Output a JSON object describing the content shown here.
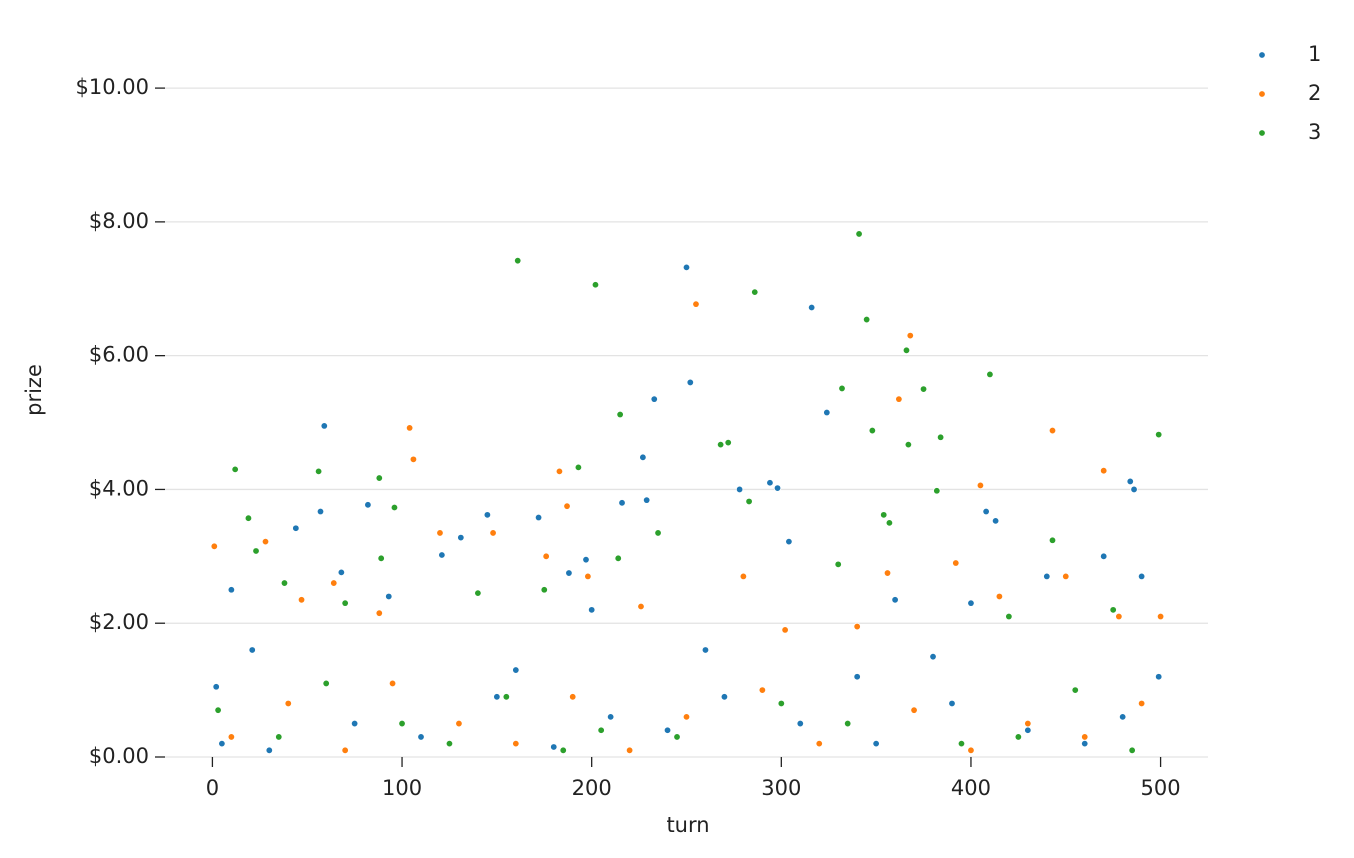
{
  "chart_data": {
    "type": "scatter",
    "x_label": "turn",
    "y_label": "prize",
    "xlim": [
      -25,
      525
    ],
    "ylim": [
      0,
      10.45
    ],
    "xticks": [
      0,
      100,
      200,
      300,
      400,
      500
    ],
    "yticks": [
      {
        "value": 0,
        "label": "$0.00"
      },
      {
        "value": 2,
        "label": "$2.00"
      },
      {
        "value": 4,
        "label": "$4.00"
      },
      {
        "value": 6,
        "label": "$6.00"
      },
      {
        "value": 8,
        "label": "$8.00"
      },
      {
        "value": 10,
        "label": "$10.00"
      }
    ],
    "grid": true,
    "legend": "upper-right",
    "series": [
      {
        "name": "1",
        "color": "#1f77b4",
        "x": [
          59,
          250,
          252,
          316,
          324,
          233,
          227,
          44,
          57,
          82,
          145,
          172,
          216,
          229,
          278,
          294,
          304,
          408,
          413,
          484,
          486,
          298,
          121,
          131,
          188,
          197,
          2,
          10,
          21,
          68,
          93,
          160,
          200,
          260,
          340,
          360,
          380,
          400,
          440,
          470,
          490,
          499,
          5,
          30,
          75,
          110,
          150,
          180,
          210,
          240,
          270,
          310,
          350,
          390,
          430,
          460,
          480
        ],
        "values": [
          4.95,
          7.32,
          5.6,
          6.72,
          5.15,
          5.35,
          4.48,
          3.42,
          3.67,
          3.77,
          3.62,
          3.58,
          3.8,
          3.84,
          4.0,
          4.1,
          3.22,
          3.67,
          3.53,
          4.12,
          4.0,
          4.02,
          3.02,
          3.28,
          2.75,
          2.95,
          1.05,
          2.5,
          1.6,
          2.76,
          2.4,
          1.3,
          2.2,
          1.6,
          1.2,
          2.35,
          1.5,
          2.3,
          2.7,
          3.0,
          2.7,
          1.2,
          0.2,
          0.1,
          0.5,
          0.3,
          0.9,
          0.15,
          0.6,
          0.4,
          0.9,
          0.5,
          0.2,
          0.8,
          0.4,
          0.2,
          0.6
        ]
      },
      {
        "name": "2",
        "color": "#ff7f0e",
        "x": [
          1,
          28,
          47,
          104,
          106,
          120,
          148,
          183,
          187,
          255,
          362,
          368,
          405,
          443,
          470,
          64,
          88,
          176,
          198,
          226,
          280,
          302,
          340,
          356,
          392,
          415,
          450,
          478,
          500,
          10,
          40,
          70,
          95,
          130,
          160,
          190,
          220,
          250,
          290,
          320,
          370,
          400,
          430,
          460,
          490
        ],
        "values": [
          3.15,
          3.22,
          2.35,
          4.92,
          4.45,
          3.35,
          3.35,
          4.27,
          3.75,
          6.77,
          5.35,
          6.3,
          4.06,
          4.88,
          4.28,
          2.6,
          2.15,
          3.0,
          2.7,
          2.25,
          2.7,
          1.9,
          1.95,
          2.75,
          2.9,
          2.4,
          2.7,
          2.1,
          2.1,
          0.3,
          0.8,
          0.1,
          1.1,
          0.5,
          0.2,
          0.9,
          0.1,
          0.6,
          1.0,
          0.2,
          0.7,
          0.1,
          0.5,
          0.3,
          0.8
        ]
      },
      {
        "name": "3",
        "color": "#2ca02c",
        "x": [
          12,
          19,
          56,
          88,
          96,
          161,
          193,
          202,
          215,
          268,
          272,
          286,
          341,
          345,
          348,
          332,
          366,
          367,
          375,
          384,
          410,
          499,
          443,
          354,
          357,
          382,
          235,
          283,
          89,
          23,
          38,
          70,
          140,
          175,
          214,
          330,
          420,
          475,
          3,
          35,
          60,
          100,
          125,
          155,
          185,
          205,
          245,
          300,
          335,
          395,
          425,
          455,
          485
        ],
        "values": [
          4.3,
          3.57,
          4.27,
          4.17,
          3.73,
          7.42,
          4.33,
          7.06,
          5.12,
          4.67,
          4.7,
          6.95,
          7.82,
          6.54,
          4.88,
          5.51,
          6.08,
          4.67,
          5.5,
          4.78,
          5.72,
          4.82,
          3.24,
          3.62,
          3.5,
          3.98,
          3.35,
          3.82,
          2.97,
          3.08,
          2.6,
          2.3,
          2.45,
          2.5,
          2.97,
          2.88,
          2.1,
          2.2,
          0.7,
          0.3,
          1.1,
          0.5,
          0.2,
          0.9,
          0.1,
          0.4,
          0.3,
          0.8,
          0.5,
          0.2,
          0.3,
          1.0,
          0.1
        ]
      }
    ]
  }
}
